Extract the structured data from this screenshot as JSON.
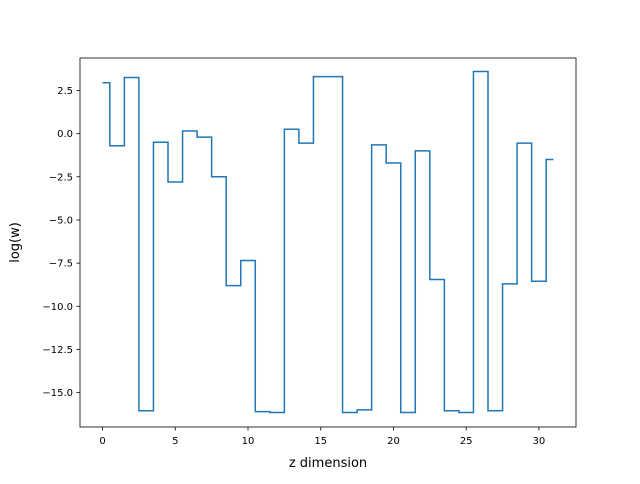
{
  "chart_data": {
    "type": "line",
    "drawstyle": "steps-mid",
    "title": "",
    "xlabel": "z dimension",
    "ylabel": "log(w)",
    "xlim": [
      -1.55,
      32.55
    ],
    "ylim": [
      -16.99,
      4.38
    ],
    "grid": false,
    "legend": "none",
    "x_ticks": [
      0,
      5,
      10,
      15,
      20,
      25,
      30
    ],
    "x_tick_labels": [
      "0",
      "5",
      "10",
      "15",
      "20",
      "25",
      "30"
    ],
    "y_ticks": [
      2.5,
      0.0,
      -2.5,
      -5.0,
      -7.5,
      -10.0,
      -12.5,
      -15.0
    ],
    "y_tick_labels": [
      "2.5",
      "0.0",
      "−2.5",
      "−5.0",
      "−7.5",
      "−10.0",
      "−12.5",
      "−15.0"
    ],
    "series": [
      {
        "color": "#1f77b4",
        "x": [
          0,
          1,
          2,
          3,
          4,
          5,
          6,
          7,
          8,
          9,
          10,
          11,
          12,
          13,
          14,
          15,
          16,
          17,
          18,
          19,
          20,
          21,
          22,
          23,
          24,
          25,
          26,
          27,
          28,
          29,
          30,
          31
        ],
        "y": [
          2.95,
          -0.7,
          3.25,
          -16.05,
          -0.5,
          -2.8,
          0.15,
          -0.2,
          -2.5,
          -8.8,
          -7.35,
          -16.1,
          -16.15,
          0.25,
          -0.55,
          3.3,
          3.3,
          -16.15,
          -16.0,
          -0.65,
          -1.7,
          -16.15,
          -1.0,
          -8.45,
          -16.05,
          -16.15,
          3.6,
          -16.05,
          -8.7,
          -0.55,
          -8.55,
          -1.5
        ]
      }
    ]
  }
}
